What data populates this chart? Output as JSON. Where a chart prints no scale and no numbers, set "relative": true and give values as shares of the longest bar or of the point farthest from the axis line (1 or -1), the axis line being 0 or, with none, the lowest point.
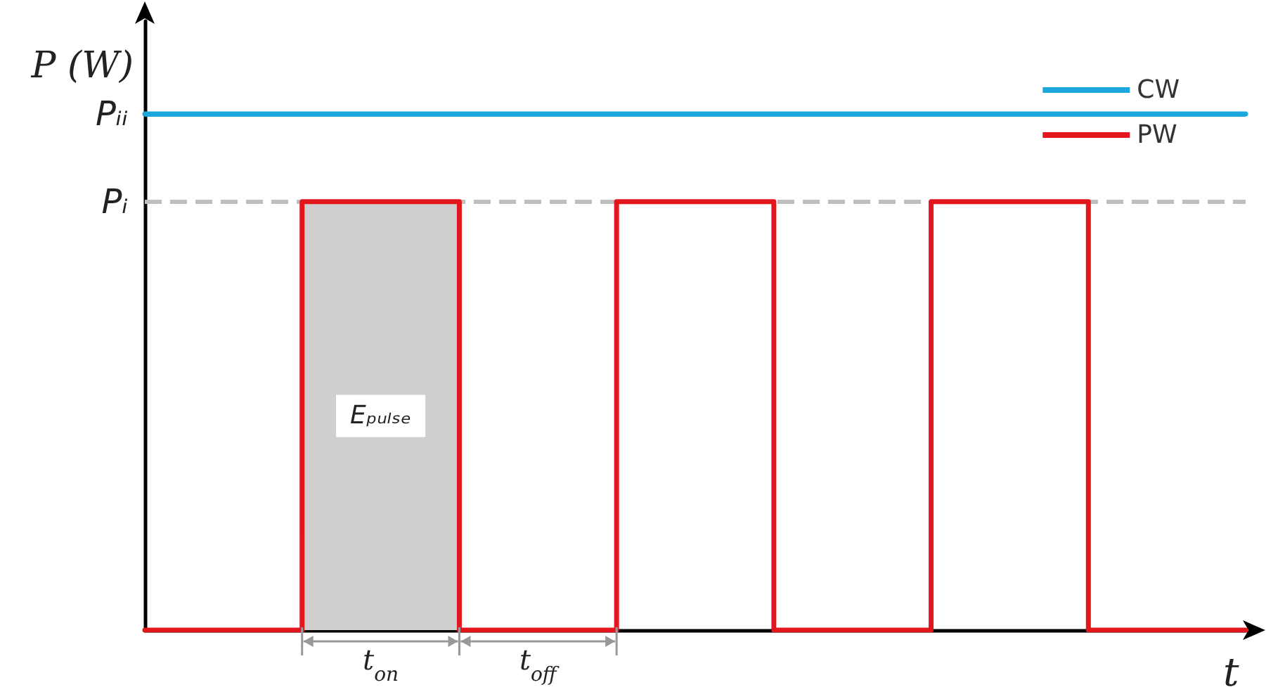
{
  "chart_data": {
    "type": "line",
    "xlabel": "t",
    "ylabel": "P (W)",
    "categories": [
      null,
      null,
      null,
      null,
      null,
      null,
      null,
      null
    ],
    "relative": true,
    "legend": "top right",
    "series": [
      {
        "name": "Eₚᵤₗₛₑ",
        "color": "#cfcfcf",
        "type": "area",
        "values": [
          null,
          0.83,
          0.83,
          null,
          null,
          null,
          null,
          null
        ]
      },
      {
        "name": "CW",
        "color": "#1ca7dc",
        "values": [
          1,
          1,
          1,
          1,
          1,
          1,
          1,
          1
        ]
      },
      {
        "name": "PW",
        "color": "#e3161d",
        "type": "step",
        "values": [
          0,
          0.83,
          0,
          0.83,
          0,
          0.83,
          0,
          0
        ]
      }
    ],
    "ref_lines": [
      {
        "axis": "y",
        "value": 1,
        "label": "Pᵢᵢ",
        "color": "#1ca7dc",
        "line_style": "solid"
      },
      {
        "axis": "y",
        "value": 0.83,
        "label": "Pᵢ",
        "color": "#bfbfbf",
        "line_style": "dashed"
      }
    ],
    "annotations": [
      "t$_{on}$",
      "t$_{off}$"
    ]
  }
}
